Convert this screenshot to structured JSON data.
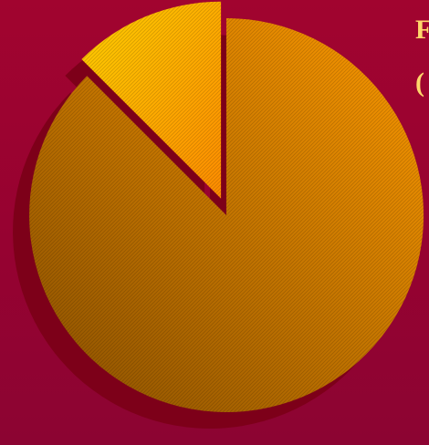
{
  "colors": {
    "background": "#9c0230",
    "shadow": "#7d0019",
    "heading": "#ffd66b",
    "slice_large_light": "#ff9a00",
    "slice_large_dark": "#8a5000",
    "slice_small_light": "#ffd000",
    "slice_small_dark": "#ff8c00"
  },
  "heading": {
    "line1": "F",
    "line2": "("
  },
  "chart_data": {
    "type": "pie",
    "style": "3d-shadowed, hatched fill",
    "exploded_slice": 1,
    "slices": [
      {
        "value": 87.5,
        "color": "#e08a00"
      },
      {
        "value": 12.5,
        "color": "#ffc000"
      }
    ],
    "title": "",
    "legend": "none"
  }
}
